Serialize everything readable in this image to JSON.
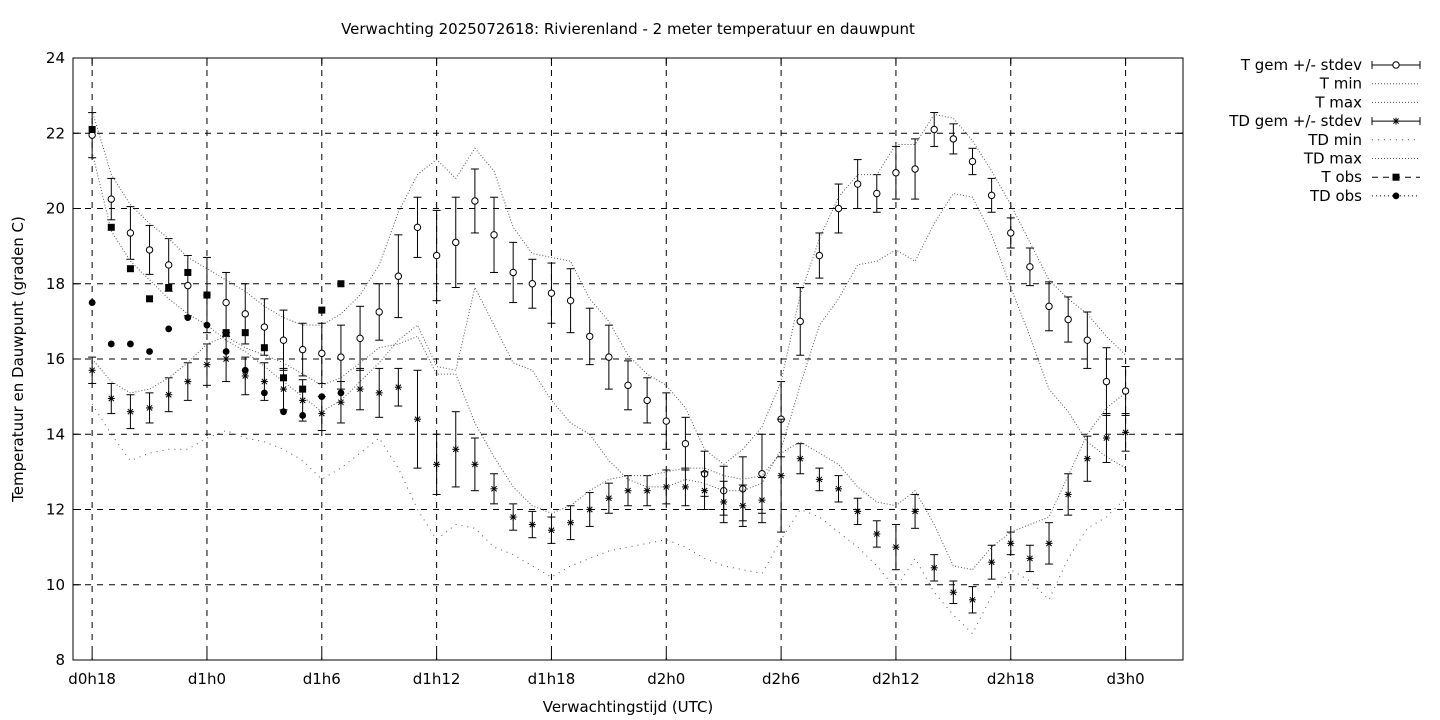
{
  "chart_data": {
    "type": "scatter",
    "title": "Verwachting 2025072618: Rivierenland - 2 meter temperatuur en dauwpunt",
    "xlabel": "Verwachtingstijd (UTC)",
    "ylabel": "Temperatuur en Dauwpunt (graden C)",
    "xlim": [
      -1,
      57
    ],
    "ylim": [
      8,
      24
    ],
    "yticks": [
      8,
      10,
      12,
      14,
      16,
      18,
      20,
      22,
      24
    ],
    "xticks": [
      {
        "x": 0,
        "label": "d0h18"
      },
      {
        "x": 6,
        "label": "d1h0"
      },
      {
        "x": 12,
        "label": "d1h6"
      },
      {
        "x": 18,
        "label": "d1h12"
      },
      {
        "x": 24,
        "label": "d1h18"
      },
      {
        "x": 30,
        "label": "d2h0"
      },
      {
        "x": 36,
        "label": "d2h6"
      },
      {
        "x": 42,
        "label": "d2h12"
      },
      {
        "x": 48,
        "label": "d2h18"
      },
      {
        "x": 54,
        "label": "d3h0"
      }
    ],
    "x_unit": "hours from d0h18",
    "grid": true,
    "legend_position": "right",
    "series": [
      {
        "name": "T gem +/- stdev",
        "style": "errorbar-circle",
        "x": [
          0,
          1,
          2,
          3,
          4,
          5,
          6,
          7,
          8,
          9,
          10,
          11,
          12,
          13,
          14,
          15,
          16,
          17,
          18,
          19,
          20,
          21,
          22,
          23,
          24,
          25,
          26,
          27,
          28,
          29,
          30,
          31,
          32,
          33,
          34,
          35,
          36,
          37,
          38,
          39,
          40,
          41,
          42,
          43,
          44,
          45,
          46,
          47,
          48,
          49,
          50,
          51,
          52,
          53,
          54
        ],
        "y": [
          21.95,
          20.25,
          19.35,
          18.9,
          18.5,
          17.95,
          17.7,
          17.5,
          17.2,
          16.85,
          16.5,
          16.25,
          16.15,
          16.05,
          16.55,
          17.25,
          18.2,
          19.5,
          18.75,
          19.1,
          20.2,
          19.3,
          18.3,
          18.0,
          17.75,
          17.55,
          16.6,
          16.05,
          15.3,
          14.9,
          14.35,
          13.75,
          12.95,
          12.5,
          12.55,
          12.95,
          14.4,
          17.0,
          18.75,
          20.0,
          20.65,
          20.4,
          20.95,
          21.05,
          22.1,
          21.85,
          21.25,
          20.35,
          19.35,
          18.45,
          17.4,
          17.05,
          16.5,
          15.4,
          15.15
        ],
        "err": [
          0.6,
          0.55,
          0.7,
          0.65,
          0.7,
          0.8,
          1.0,
          0.8,
          0.8,
          0.75,
          0.8,
          0.7,
          0.8,
          0.85,
          0.85,
          0.75,
          1.1,
          0.8,
          1.2,
          1.2,
          0.85,
          1.0,
          0.8,
          0.65,
          0.8,
          0.85,
          0.75,
          0.85,
          0.65,
          0.6,
          0.75,
          0.7,
          0.6,
          0.65,
          0.85,
          1.05,
          1.0,
          0.9,
          0.6,
          0.65,
          0.65,
          0.5,
          0.7,
          0.8,
          0.45,
          0.4,
          0.35,
          0.45,
          0.4,
          0.5,
          0.65,
          0.6,
          0.75,
          0.9,
          0.65
        ]
      },
      {
        "name": "T min",
        "style": "dotted",
        "x": [
          0,
          1,
          2,
          3,
          4,
          5,
          6,
          7,
          8,
          9,
          10,
          11,
          12,
          13,
          14,
          15,
          16,
          17,
          18,
          19,
          20,
          21,
          22,
          23,
          24,
          25,
          26,
          27,
          28,
          29,
          30,
          31,
          32,
          33,
          34,
          35,
          36,
          37,
          38,
          39,
          40,
          41,
          42,
          43,
          44,
          45,
          46,
          47,
          48,
          49,
          50,
          51,
          52,
          53,
          54
        ],
        "y": [
          21.5,
          19.4,
          18.6,
          18.1,
          17.6,
          17.2,
          16.9,
          16.5,
          16.2,
          15.8,
          15.4,
          15.0,
          14.6,
          14.9,
          15.4,
          15.9,
          16.5,
          16.9,
          15.8,
          15.7,
          17.9,
          16.9,
          15.9,
          15.7,
          14.9,
          14.3,
          14.0,
          13.3,
          12.8,
          12.6,
          12.6,
          12.8,
          12.7,
          12.5,
          12.5,
          12.7,
          13.6,
          15.3,
          16.9,
          17.6,
          18.5,
          18.6,
          18.9,
          18.6,
          19.6,
          20.4,
          20.3,
          19.3,
          17.9,
          16.6,
          15.2,
          14.6,
          13.8,
          13.4,
          13.1
        ]
      },
      {
        "name": "T max",
        "style": "dotted",
        "x": [
          0,
          1,
          2,
          3,
          4,
          5,
          6,
          7,
          8,
          9,
          10,
          11,
          12,
          13,
          14,
          15,
          16,
          17,
          18,
          19,
          20,
          21,
          22,
          23,
          24,
          25,
          26,
          27,
          28,
          29,
          30,
          31,
          32,
          33,
          34,
          35,
          36,
          37,
          38,
          39,
          40,
          41,
          42,
          43,
          44,
          45,
          46,
          47,
          48,
          49,
          50,
          51,
          52,
          53,
          54
        ],
        "y": [
          22.6,
          20.9,
          20.1,
          19.6,
          19.2,
          18.7,
          18.4,
          18.1,
          17.8,
          17.4,
          17.1,
          16.9,
          16.9,
          17.2,
          17.7,
          18.5,
          19.9,
          20.9,
          21.3,
          20.8,
          21.6,
          21.0,
          19.5,
          18.8,
          18.7,
          18.6,
          17.6,
          17.0,
          16.1,
          15.6,
          15.3,
          14.7,
          13.6,
          13.2,
          13.6,
          14.2,
          15.4,
          17.7,
          19.2,
          20.3,
          20.9,
          20.9,
          21.7,
          21.7,
          22.5,
          22.4,
          21.8,
          21.0,
          20.1,
          19.1,
          18.1,
          17.6,
          17.2,
          16.6,
          16.1
        ]
      },
      {
        "name": "TD gem +/- stdev",
        "style": "errorbar-star",
        "x": [
          0,
          1,
          2,
          3,
          4,
          5,
          6,
          7,
          8,
          9,
          10,
          11,
          12,
          13,
          14,
          15,
          16,
          17,
          18,
          19,
          20,
          21,
          22,
          23,
          24,
          25,
          26,
          27,
          28,
          29,
          30,
          31,
          32,
          33,
          34,
          35,
          36,
          37,
          38,
          39,
          40,
          41,
          42,
          43,
          44,
          45,
          46,
          47,
          48,
          49,
          50,
          51,
          52,
          53,
          54
        ],
        "y": [
          15.7,
          14.95,
          14.6,
          14.7,
          15.05,
          15.4,
          15.85,
          16.0,
          15.55,
          15.4,
          15.2,
          14.9,
          14.55,
          14.85,
          15.2,
          15.1,
          15.25,
          14.4,
          13.2,
          13.6,
          13.2,
          12.55,
          11.8,
          11.6,
          11.45,
          11.65,
          12.0,
          12.3,
          12.5,
          12.5,
          12.6,
          12.6,
          12.5,
          12.2,
          12.1,
          12.25,
          12.9,
          13.35,
          12.8,
          12.55,
          11.95,
          11.35,
          11.0,
          11.95,
          10.45,
          9.8,
          9.6,
          10.6,
          11.1,
          10.7,
          11.1,
          12.4,
          13.35,
          13.9,
          14.05
        ],
        "err": [
          0.35,
          0.4,
          0.45,
          0.4,
          0.45,
          0.5,
          0.55,
          0.6,
          0.5,
          0.5,
          0.55,
          0.55,
          0.45,
          0.55,
          0.55,
          0.65,
          0.5,
          1.3,
          0.8,
          1.0,
          0.7,
          0.4,
          0.35,
          0.35,
          0.35,
          0.45,
          0.45,
          0.4,
          0.4,
          0.4,
          0.45,
          0.5,
          0.5,
          0.55,
          0.55,
          0.6,
          1.5,
          0.4,
          0.3,
          0.35,
          0.35,
          0.35,
          0.6,
          0.45,
          0.35,
          0.3,
          0.35,
          0.45,
          0.3,
          0.35,
          0.55,
          0.55,
          0.6,
          0.65,
          0.5
        ]
      },
      {
        "name": "TD min",
        "style": "sparse-dotted",
        "x": [
          0,
          1,
          2,
          3,
          4,
          5,
          6,
          7,
          8,
          9,
          10,
          11,
          12,
          13,
          14,
          15,
          16,
          17,
          18,
          19,
          20,
          21,
          22,
          23,
          24,
          25,
          26,
          27,
          28,
          29,
          30,
          31,
          32,
          33,
          34,
          35,
          36,
          37,
          38,
          39,
          40,
          41,
          42,
          43,
          44,
          45,
          46,
          47,
          48,
          49,
          50,
          51,
          52,
          53,
          54
        ],
        "y": [
          14.8,
          14.0,
          13.3,
          13.5,
          13.6,
          13.6,
          13.9,
          14.1,
          13.9,
          13.8,
          13.6,
          13.3,
          12.8,
          13.1,
          13.5,
          13.9,
          13.1,
          12.0,
          11.2,
          11.6,
          11.5,
          11.0,
          10.8,
          10.5,
          10.2,
          10.5,
          10.7,
          10.9,
          11.0,
          11.1,
          11.2,
          11.0,
          10.7,
          10.5,
          10.4,
          10.3,
          11.2,
          12.0,
          11.8,
          11.4,
          11.0,
          10.5,
          9.9,
          10.7,
          9.8,
          9.2,
          8.7,
          9.7,
          10.4,
          10.1,
          9.6,
          10.7,
          11.5,
          11.8,
          12.3
        ]
      },
      {
        "name": "TD max",
        "style": "dotted",
        "x": [
          0,
          1,
          2,
          3,
          4,
          5,
          6,
          7,
          8,
          9,
          10,
          11,
          12,
          13,
          14,
          15,
          16,
          17,
          18,
          19,
          20,
          21,
          22,
          23,
          24,
          25,
          26,
          27,
          28,
          29,
          30,
          31,
          32,
          33,
          34,
          35,
          36,
          37,
          38,
          39,
          40,
          41,
          42,
          43,
          44,
          45,
          46,
          47,
          48,
          49,
          50,
          51,
          52,
          53,
          54
        ],
        "y": [
          16.0,
          15.4,
          15.1,
          15.2,
          15.5,
          15.9,
          16.4,
          16.6,
          16.3,
          16.1,
          15.9,
          15.6,
          15.3,
          15.5,
          15.9,
          16.3,
          16.4,
          16.6,
          15.6,
          15.6,
          14.3,
          13.4,
          12.6,
          12.1,
          11.9,
          12.1,
          12.5,
          12.8,
          12.9,
          12.9,
          13.0,
          13.1,
          13.1,
          12.9,
          12.8,
          12.9,
          13.5,
          13.8,
          13.5,
          13.2,
          12.6,
          12.2,
          12.1,
          12.5,
          11.6,
          10.5,
          10.4,
          11.0,
          11.4,
          11.6,
          11.8,
          12.9,
          14.0,
          14.7,
          15.1
        ]
      },
      {
        "name": "T obs",
        "style": "square",
        "x": [
          0,
          1,
          2,
          3,
          4,
          5,
          6,
          7,
          8,
          9,
          10,
          11,
          12,
          13
        ],
        "y": [
          22.1,
          19.5,
          18.4,
          17.6,
          17.9,
          18.3,
          17.7,
          16.7,
          16.7,
          16.3,
          15.5,
          15.2,
          17.3,
          18.0
        ]
      },
      {
        "name": "TD obs",
        "style": "dot",
        "x": [
          0,
          1,
          2,
          3,
          4,
          5,
          6,
          7,
          8,
          9,
          10,
          11,
          12,
          13
        ],
        "y": [
          17.5,
          16.4,
          16.4,
          16.2,
          16.8,
          17.1,
          16.9,
          16.2,
          15.7,
          15.1,
          14.6,
          14.5,
          15.0,
          15.1
        ]
      }
    ]
  }
}
